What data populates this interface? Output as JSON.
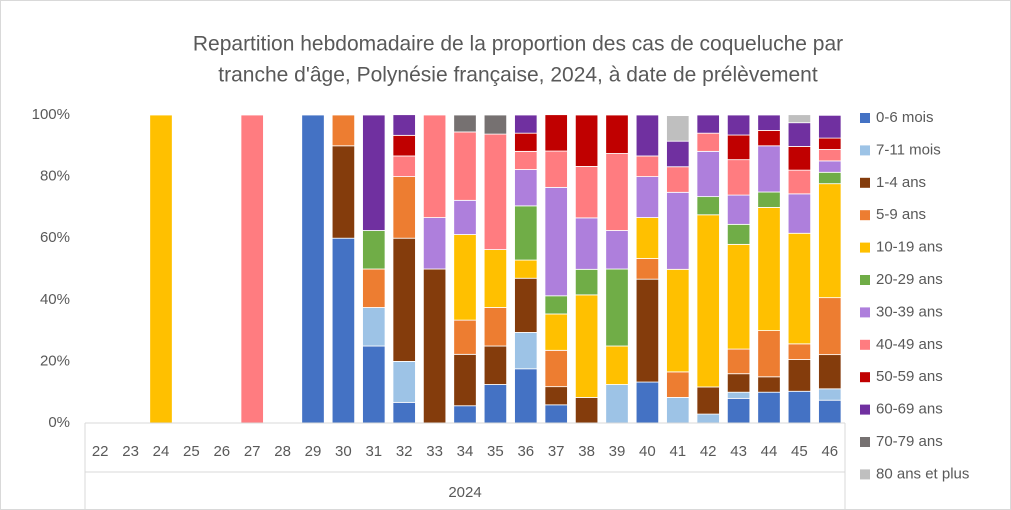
{
  "chart_data": {
    "type": "stacked_bar",
    "title": [
      "Repartition hebdomadaire de la proportion des cas de coqueluche par",
      "tranche d'âge, Polynésie française, 2024, à date de prélèvement"
    ],
    "categories": [
      "22",
      "23",
      "24",
      "25",
      "26",
      "27",
      "28",
      "29",
      "30",
      "31",
      "32",
      "33",
      "34",
      "35",
      "36",
      "37",
      "38",
      "39",
      "40",
      "41",
      "42",
      "43",
      "44",
      "45",
      "46"
    ],
    "x_group": "2024",
    "ylim": [
      0,
      100
    ],
    "yticks": [
      {
        "value": 0,
        "label": "0%"
      },
      {
        "value": 20,
        "label": "20%"
      },
      {
        "value": 40,
        "label": "40%"
      },
      {
        "value": 60,
        "label": "60%"
      },
      {
        "value": 80,
        "label": "80%"
      },
      {
        "value": 100,
        "label": "100%"
      }
    ],
    "grid": false,
    "legend": "right",
    "series": [
      {
        "name": "0-6 mois",
        "color": "#4472c4",
        "values": [
          0,
          0,
          0,
          0,
          0,
          0,
          0,
          100,
          60,
          25,
          6.7,
          0,
          5.6,
          12.5,
          17.6,
          5.9,
          0,
          0,
          13.3,
          0,
          0,
          8,
          10,
          10.3,
          7.4
        ]
      },
      {
        "name": "7-11 mois",
        "color": "#9dc3e6",
        "values": [
          0,
          0,
          0,
          0,
          0,
          0,
          0,
          0,
          0,
          12.5,
          13.3,
          0,
          0,
          0,
          11.8,
          0,
          0,
          12.5,
          0,
          8.3,
          2.9,
          2,
          0,
          0,
          3.7
        ]
      },
      {
        "name": "1-4 ans",
        "color": "#843c0c",
        "values": [
          0,
          0,
          0,
          0,
          0,
          0,
          0,
          0,
          30,
          0,
          40,
          50,
          16.7,
          12.5,
          17.6,
          5.9,
          8.3,
          0,
          33.4,
          0,
          8.8,
          6,
          5,
          10.3,
          11.1
        ]
      },
      {
        "name": "5-9 ans",
        "color": "#ed7d31",
        "values": [
          0,
          0,
          0,
          0,
          0,
          0,
          0,
          0,
          10,
          12.5,
          20,
          0,
          11.1,
          12.5,
          0,
          11.8,
          0,
          0,
          6.7,
          8.3,
          0,
          8,
          15,
          5.1,
          18.5
        ]
      },
      {
        "name": "10-19 ans",
        "color": "#ffc000",
        "values": [
          0,
          0,
          100,
          0,
          0,
          0,
          0,
          0,
          0,
          0,
          0,
          0,
          27.8,
          18.8,
          5.9,
          11.8,
          33.3,
          12.5,
          13.3,
          33.3,
          55.9,
          34,
          40,
          35.9,
          37
        ]
      },
      {
        "name": "20-29 ans",
        "color": "#70ad47",
        "values": [
          0,
          0,
          0,
          0,
          0,
          0,
          0,
          0,
          0,
          12.5,
          0,
          0,
          0,
          0,
          17.6,
          5.9,
          8.3,
          25,
          0,
          0,
          5.9,
          6.5,
          5,
          0,
          3.7
        ]
      },
      {
        "name": "30-39 ans",
        "color": "#ae7fdc",
        "values": [
          0,
          0,
          0,
          0,
          0,
          0,
          0,
          0,
          0,
          0,
          0,
          16.7,
          11.1,
          0,
          11.8,
          35.2,
          16.7,
          12.5,
          13.3,
          25,
          14.7,
          9.5,
          15,
          12.8,
          3.7
        ]
      },
      {
        "name": "40-49 ans",
        "color": "#ff7c80",
        "values": [
          0,
          0,
          0,
          0,
          0,
          100,
          0,
          0,
          0,
          0,
          6.7,
          33.3,
          22.2,
          37.5,
          5.9,
          11.8,
          16.7,
          25,
          6.7,
          8.3,
          5.9,
          11.5,
          0,
          7.7,
          3.7
        ]
      },
      {
        "name": "50-59 ans",
        "color": "#c00000",
        "values": [
          0,
          0,
          0,
          0,
          0,
          0,
          0,
          0,
          0,
          0,
          6.7,
          0,
          0,
          0,
          5.9,
          11.8,
          16.7,
          12.5,
          0,
          0,
          0,
          8,
          5,
          7.7,
          3.7
        ]
      },
      {
        "name": "60-69 ans",
        "color": "#7030a0",
        "values": [
          0,
          0,
          0,
          0,
          0,
          0,
          0,
          0,
          0,
          37.5,
          6.7,
          0,
          0,
          0,
          5.9,
          0,
          0,
          0,
          13.3,
          8.3,
          5.9,
          6.5,
          5,
          7.7,
          7.4
        ]
      },
      {
        "name": "70-79 ans",
        "color": "#767171",
        "values": [
          0,
          0,
          0,
          0,
          0,
          0,
          0,
          0,
          0,
          0,
          0,
          0,
          5.5,
          6.2,
          0,
          0,
          0,
          0,
          0,
          0,
          0,
          0,
          0,
          0,
          0
        ]
      },
      {
        "name": "80 ans et plus",
        "color": "#bfbfbf",
        "values": [
          0,
          0,
          0,
          0,
          0,
          0,
          0,
          0,
          0,
          0,
          0,
          0,
          0,
          0,
          0,
          0,
          0,
          0,
          0,
          8.3,
          0,
          0,
          0,
          2.6,
          0
        ]
      }
    ]
  }
}
